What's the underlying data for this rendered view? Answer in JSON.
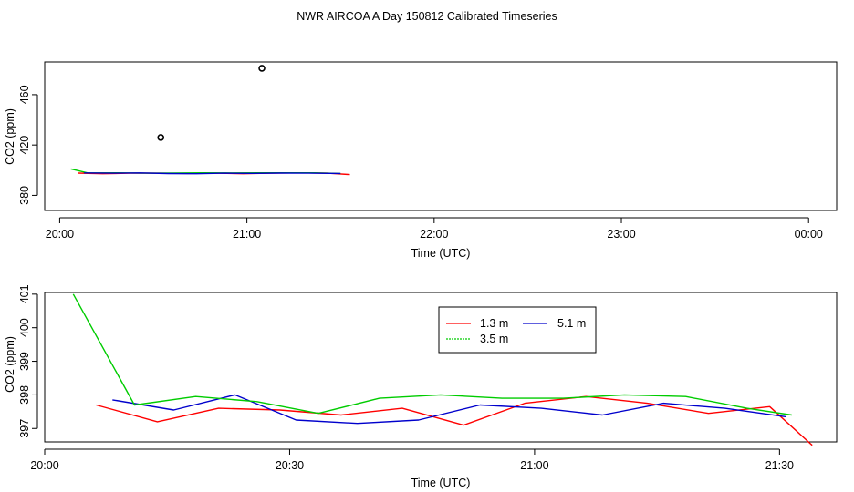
{
  "figure": {
    "title": "NWR AIRCOA A  Day 150812  Calibrated Timeseries"
  },
  "chart_data": [
    {
      "type": "scatter",
      "panel": "top",
      "xlabel": "Time (UTC)",
      "ylabel": "CO2 (ppm)",
      "xlim_hours": [
        19.92,
        24.15
      ],
      "ylim": [
        368,
        486
      ],
      "x_ticks": [
        {
          "v": 20,
          "label": "20:00"
        },
        {
          "v": 21,
          "label": "21:00"
        },
        {
          "v": 22,
          "label": "22:00"
        },
        {
          "v": 23,
          "label": "23:00"
        },
        {
          "v": 24,
          "label": "00:00"
        }
      ],
      "y_ticks": [
        {
          "v": 380,
          "label": "380"
        },
        {
          "v": 420,
          "label": "420"
        },
        {
          "v": 460,
          "label": "460"
        }
      ],
      "series": [
        {
          "color": "#ff0000",
          "x": [
            20.1,
            20.23,
            20.38,
            20.53,
            20.68,
            20.83,
            20.98,
            21.13,
            21.28,
            21.43,
            21.55
          ],
          "y": [
            397.7,
            397.2,
            397.6,
            397.6,
            397.4,
            397.6,
            397.2,
            397.7,
            397.9,
            397.6,
            396.5
          ]
        },
        {
          "color": "#00cc00",
          "x": [
            20.06,
            20.15,
            20.31,
            20.46,
            20.61,
            20.76,
            20.91,
            21.06,
            21.21,
            21.36,
            21.5
          ],
          "y": [
            401.0,
            397.8,
            397.9,
            397.6,
            397.7,
            397.9,
            397.8,
            397.9,
            397.9,
            397.9,
            397.4
          ]
        },
        {
          "color": "#0000cc",
          "x": [
            20.13,
            20.28,
            20.43,
            20.58,
            20.73,
            20.88,
            21.03,
            21.18,
            21.33,
            21.5
          ],
          "y": [
            397.8,
            397.6,
            397.8,
            397.3,
            397.2,
            397.6,
            397.5,
            397.7,
            397.6,
            397.4
          ]
        },
        {
          "color": "#000000",
          "marker": "circle",
          "x": [
            20.54,
            21.08
          ],
          "y": [
            426,
            481
          ]
        }
      ]
    },
    {
      "type": "line",
      "panel": "bottom",
      "xlabel": "Time (UTC)",
      "ylabel": "CO2 (ppm)",
      "xlim_minutes": [
        0,
        97
      ],
      "ylim": [
        396.6,
        401.05
      ],
      "x_ticks": [
        {
          "v": 0,
          "label": "20:00"
        },
        {
          "v": 30,
          "label": "20:30"
        },
        {
          "v": 60,
          "label": "21:00"
        },
        {
          "v": 90,
          "label": "21:30"
        }
      ],
      "y_ticks": [
        {
          "v": 397,
          "label": "397"
        },
        {
          "v": 398,
          "label": "398"
        },
        {
          "v": 399,
          "label": "399"
        },
        {
          "v": 400,
          "label": "400"
        },
        {
          "v": 401,
          "label": "401"
        }
      ],
      "legend": {
        "position": "top-center",
        "entries": [
          {
            "label": "1.3 m",
            "color": "#ff0000"
          },
          {
            "label": "5.1 m",
            "color": "#0000cc"
          },
          {
            "label": "3.5 m",
            "color": "#00cc00"
          }
        ]
      },
      "series": [
        {
          "name": "1.3 m",
          "color": "#ff0000",
          "x": [
            6.3,
            13.8,
            21.3,
            28.8,
            36.3,
            43.8,
            51.3,
            58.8,
            66.3,
            73.8,
            81.3,
            88.8,
            94.0
          ],
          "y": [
            397.7,
            397.2,
            397.6,
            397.55,
            397.4,
            397.6,
            397.1,
            397.75,
            397.95,
            397.75,
            397.45,
            397.65,
            396.5
          ]
        },
        {
          "name": "5.1 m",
          "color": "#0000cc",
          "x": [
            8.3,
            15.8,
            23.3,
            30.8,
            38.3,
            45.8,
            53.3,
            60.8,
            68.3,
            75.8,
            83.3,
            90.8
          ],
          "y": [
            397.85,
            397.55,
            398.0,
            397.25,
            397.15,
            397.25,
            397.7,
            397.6,
            397.4,
            397.75,
            397.6,
            397.35
          ]
        },
        {
          "name": "3.5 m",
          "color": "#00cc00",
          "x": [
            3.5,
            11.0,
            18.5,
            26.0,
            33.5,
            41.0,
            48.5,
            56.0,
            63.5,
            71.0,
            78.5,
            86.0,
            91.5
          ],
          "y": [
            401.0,
            397.7,
            397.95,
            397.8,
            397.45,
            397.9,
            398.0,
            397.9,
            397.9,
            398.0,
            397.95,
            397.6,
            397.4
          ]
        }
      ]
    }
  ]
}
